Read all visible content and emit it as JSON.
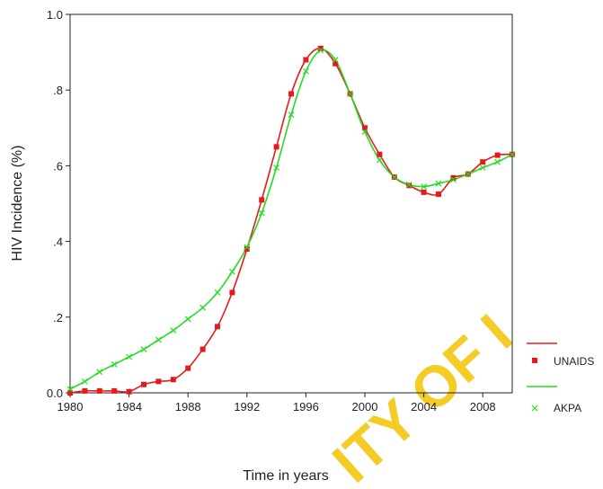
{
  "chart_data": {
    "type": "line",
    "title": "",
    "xlabel": "Time in years",
    "ylabel": "HIV Incidence (%)",
    "xlim": [
      1980,
      2010
    ],
    "ylim": [
      0.0,
      1.0
    ],
    "x_ticks": [
      1980,
      1984,
      1988,
      1992,
      1996,
      2000,
      2004,
      2008
    ],
    "y_ticks": [
      {
        "value": 0.0,
        "label": "0.0"
      },
      {
        "value": 0.2,
        "label": ".2"
      },
      {
        "value": 0.4,
        "label": ".4"
      },
      {
        "value": 0.6,
        "label": ".6"
      },
      {
        "value": 0.8,
        "label": ".8"
      },
      {
        "value": 1.0,
        "label": "1.0"
      }
    ],
    "grid": false,
    "legend_position": "right",
    "x": [
      1980,
      1981,
      1982,
      1983,
      1984,
      1985,
      1986,
      1987,
      1988,
      1989,
      1990,
      1991,
      1992,
      1993,
      1994,
      1995,
      1996,
      1997,
      1998,
      1999,
      2000,
      2001,
      2002,
      2003,
      2004,
      2005,
      2006,
      2007,
      2008,
      2009,
      2010
    ],
    "series": [
      {
        "name": "UNAIDS",
        "color": "#e8191c",
        "marker": "square",
        "values": [
          0.0,
          0.005,
          0.005,
          0.005,
          0.003,
          0.022,
          0.03,
          0.035,
          0.065,
          0.115,
          0.175,
          0.265,
          0.38,
          0.51,
          0.65,
          0.79,
          0.88,
          0.91,
          0.87,
          0.79,
          0.7,
          0.63,
          0.57,
          0.548,
          0.53,
          0.525,
          0.568,
          0.578,
          0.61,
          0.628,
          0.63
        ]
      },
      {
        "name": "AKPA",
        "color": "#22dd22",
        "marker": "x",
        "values": [
          0.01,
          0.03,
          0.055,
          0.075,
          0.095,
          0.115,
          0.14,
          0.165,
          0.195,
          0.225,
          0.265,
          0.32,
          0.385,
          0.475,
          0.595,
          0.735,
          0.85,
          0.905,
          0.88,
          0.79,
          0.69,
          0.615,
          0.57,
          0.55,
          0.545,
          0.553,
          0.563,
          0.578,
          0.595,
          0.61,
          0.63
        ]
      }
    ]
  },
  "legend": {
    "unaids_label": "UNAIDS",
    "akpa_label": "AKPA"
  },
  "watermark": {
    "text": "ITY OF I",
    "color": "#f3c400"
  }
}
